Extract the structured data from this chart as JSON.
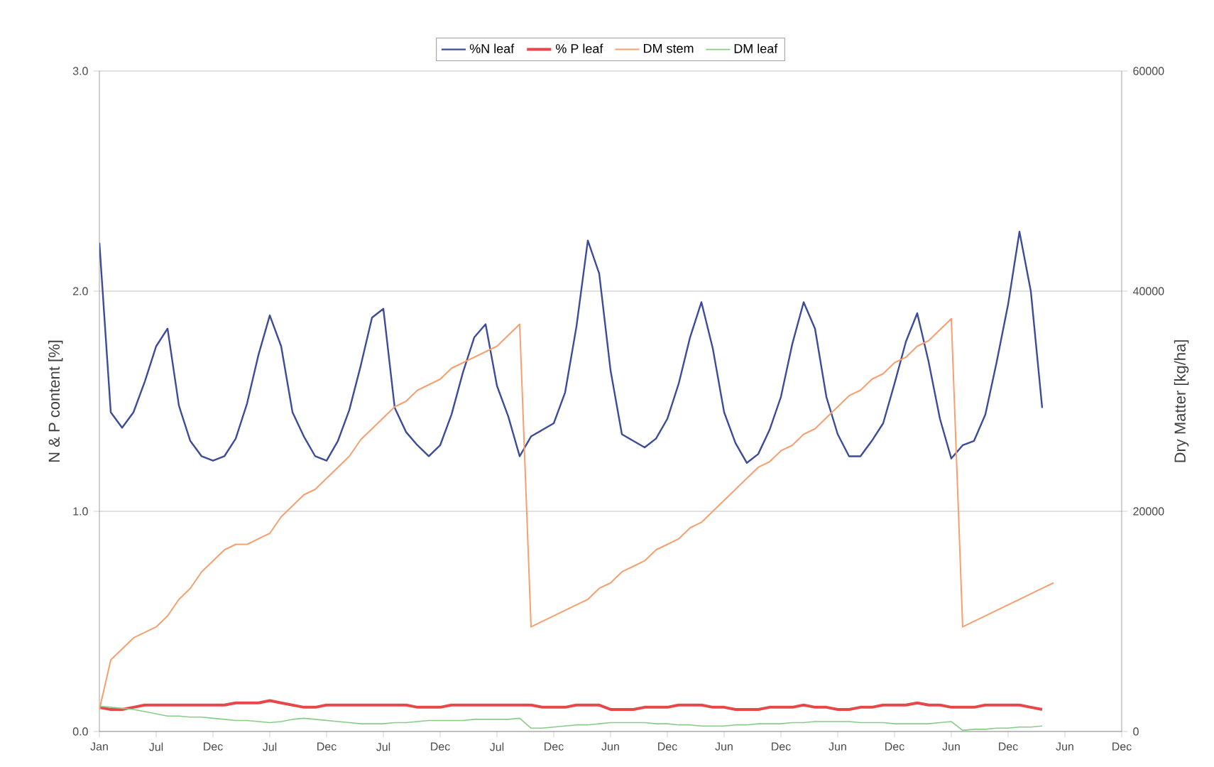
{
  "chart_data": {
    "type": "line",
    "ylabel": "N & P content [%]",
    "y2label": "Dry Matter [kg/ha]",
    "categories": [
      "Jan",
      null,
      null,
      null,
      null,
      "Jul",
      null,
      null,
      null,
      null,
      "Dec",
      null,
      null,
      null,
      null,
      "Jul",
      null,
      null,
      null,
      null,
      "Dec",
      null,
      null,
      null,
      null,
      "Jul",
      null,
      null,
      null,
      null,
      "Dec",
      null,
      null,
      null,
      null,
      "Jul",
      null,
      null,
      null,
      null,
      "Dec",
      null,
      null,
      null,
      null,
      "Jun",
      null,
      null,
      null,
      null,
      "Dec",
      null,
      null,
      null,
      null,
      "Jun",
      null,
      null,
      null,
      null,
      "Dec",
      null,
      null,
      null,
      null,
      "Jun",
      null,
      null,
      null,
      null,
      "Dec",
      null,
      null,
      null,
      null,
      "Jun",
      null,
      null,
      null,
      null,
      "Dec",
      null,
      null,
      null,
      null,
      "Jun",
      null,
      null,
      null,
      null,
      "Dec"
    ],
    "ylim": [
      0,
      3
    ],
    "yticks": [
      {
        "value": 0,
        "label": "0.0"
      },
      {
        "value": 1,
        "label": "1.0"
      },
      {
        "value": 2,
        "label": "2.0"
      },
      {
        "value": 3,
        "label": "3.0"
      }
    ],
    "y2lim": [
      0,
      60000
    ],
    "y2ticks": [
      0,
      20000,
      40000,
      60000
    ],
    "grid": "y",
    "legend": "top",
    "series": [
      {
        "name": "%N leaf",
        "color": "#3c4b9a",
        "values": [
          2.22,
          1.45,
          1.38,
          1.45,
          1.59,
          1.75,
          1.83,
          1.48,
          1.32,
          1.25,
          1.23,
          1.25,
          1.33,
          1.49,
          1.71,
          1.89,
          1.75,
          1.45,
          1.34,
          1.25,
          1.23,
          1.32,
          1.46,
          1.66,
          1.88,
          1.92,
          1.47,
          1.36,
          1.3,
          1.25,
          1.3,
          1.44,
          1.63,
          1.79,
          1.85,
          1.57,
          1.43,
          1.25,
          1.34,
          1.37,
          1.4,
          1.54,
          1.84,
          2.23,
          2.08,
          1.64,
          1.35,
          1.32,
          1.29,
          1.33,
          1.42,
          1.58,
          1.79,
          1.95,
          1.74,
          1.45,
          1.31,
          1.22,
          1.26,
          1.37,
          1.52,
          1.76,
          1.95,
          1.83,
          1.52,
          1.35,
          1.25,
          1.25,
          1.32,
          1.4,
          1.58,
          1.77,
          1.9,
          1.68,
          1.42,
          1.24,
          1.3,
          1.32,
          1.44,
          1.68,
          1.94,
          2.27,
          2.0,
          1.47,
          null,
          null,
          null,
          null,
          null,
          null,
          null
        ]
      },
      {
        "name": "% P leaf",
        "color": "#e8474a",
        "values": [
          0.11,
          0.1,
          0.1,
          0.11,
          0.12,
          0.12,
          0.12,
          0.12,
          0.12,
          0.12,
          0.12,
          0.12,
          0.13,
          0.13,
          0.13,
          0.14,
          0.13,
          0.12,
          0.11,
          0.11,
          0.12,
          0.12,
          0.12,
          0.12,
          0.12,
          0.12,
          0.12,
          0.12,
          0.11,
          0.11,
          0.11,
          0.12,
          0.12,
          0.12,
          0.12,
          0.12,
          0.12,
          0.12,
          0.12,
          0.11,
          0.11,
          0.11,
          0.12,
          0.12,
          0.12,
          0.1,
          0.1,
          0.1,
          0.11,
          0.11,
          0.11,
          0.12,
          0.12,
          0.12,
          0.11,
          0.11,
          0.1,
          0.1,
          0.1,
          0.11,
          0.11,
          0.11,
          0.12,
          0.11,
          0.11,
          0.1,
          0.1,
          0.11,
          0.11,
          0.12,
          0.12,
          0.12,
          0.13,
          0.12,
          0.12,
          0.11,
          0.11,
          0.11,
          0.12,
          0.12,
          0.12,
          0.12,
          0.11,
          0.1,
          null,
          null,
          null,
          null,
          null,
          null,
          null
        ]
      },
      {
        "name": "DM stem",
        "color": "#f4a070",
        "axis": "y2",
        "values": [
          2000,
          6500,
          7500,
          8500,
          9000,
          9500,
          10500,
          12000,
          13000,
          14500,
          15500,
          16500,
          17000,
          17000,
          17500,
          18000,
          19500,
          20500,
          21500,
          22000,
          23000,
          24000,
          25000,
          26500,
          27500,
          28500,
          29500,
          30000,
          31000,
          31500,
          32000,
          33000,
          33500,
          34000,
          34500,
          35000,
          36000,
          37000,
          9500,
          10000,
          10500,
          11000,
          11500,
          12000,
          13000,
          13500,
          14500,
          15000,
          15500,
          16500,
          17000,
          17500,
          18500,
          19000,
          20000,
          21000,
          22000,
          23000,
          24000,
          24500,
          25500,
          26000,
          27000,
          27500,
          28500,
          29500,
          30500,
          31000,
          32000,
          32500,
          33500,
          34000,
          35000,
          35500,
          36500,
          37500,
          9500,
          10000,
          10500,
          11000,
          11500,
          12000,
          12500,
          13000,
          13500,
          null,
          null,
          null,
          null,
          null,
          null
        ]
      },
      {
        "name": "DM leaf",
        "color": "#88cc88",
        "axis": "y2",
        "values": [
          2300,
          2200,
          2100,
          2000,
          1800,
          1600,
          1400,
          1400,
          1300,
          1300,
          1200,
          1100,
          1000,
          1000,
          900,
          800,
          900,
          1100,
          1200,
          1100,
          1000,
          900,
          800,
          700,
          700,
          700,
          800,
          800,
          900,
          1000,
          1000,
          1000,
          1000,
          1100,
          1100,
          1100,
          1100,
          1200,
          300,
          300,
          400,
          500,
          600,
          600,
          700,
          800,
          800,
          800,
          800,
          700,
          700,
          600,
          600,
          500,
          500,
          500,
          600,
          600,
          700,
          700,
          700,
          800,
          800,
          900,
          900,
          900,
          900,
          800,
          800,
          800,
          700,
          700,
          700,
          700,
          800,
          900,
          100,
          200,
          200,
          300,
          300,
          400,
          400,
          500,
          null,
          null,
          null,
          null,
          null,
          null,
          null
        ]
      }
    ]
  }
}
